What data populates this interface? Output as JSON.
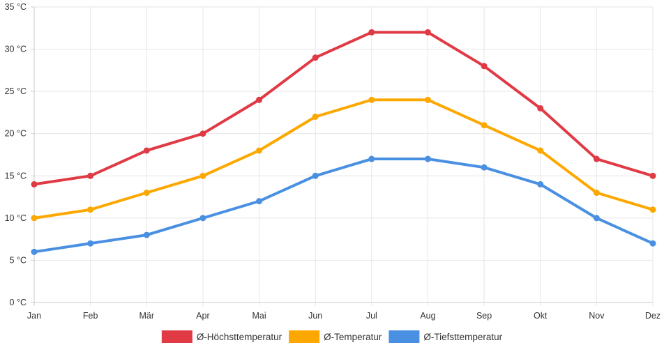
{
  "chart_data": {
    "type": "line",
    "categories": [
      "Jan",
      "Feb",
      "Mär",
      "Apr",
      "Mai",
      "Jun",
      "Jul",
      "Aug",
      "Sep",
      "Okt",
      "Nov",
      "Dez"
    ],
    "y_ticks": [
      "0 °C",
      "5 °C",
      "10 °C",
      "15 °C",
      "20 °C",
      "25 °C",
      "30 °C",
      "35 °C"
    ],
    "y_tick_values": [
      0,
      5,
      10,
      15,
      20,
      25,
      30,
      35
    ],
    "ylim": [
      0,
      35
    ],
    "grid": true,
    "legend_position": "bottom",
    "series": [
      {
        "name": "Ø-Höchsttemperatur",
        "color": "#e03a45",
        "values": [
          14,
          15,
          18,
          20,
          24,
          29,
          32,
          32,
          28,
          23,
          17,
          15
        ]
      },
      {
        "name": "Ø-Temperatur",
        "color": "#fca800",
        "values": [
          10,
          11,
          13,
          15,
          18,
          22,
          24,
          24,
          21,
          18,
          13,
          11
        ]
      },
      {
        "name": "Ø-Tiefsttemperatur",
        "color": "#4a90e2",
        "values": [
          6,
          7,
          8,
          10,
          12,
          15,
          17,
          17,
          16,
          14,
          10,
          7
        ]
      }
    ]
  }
}
